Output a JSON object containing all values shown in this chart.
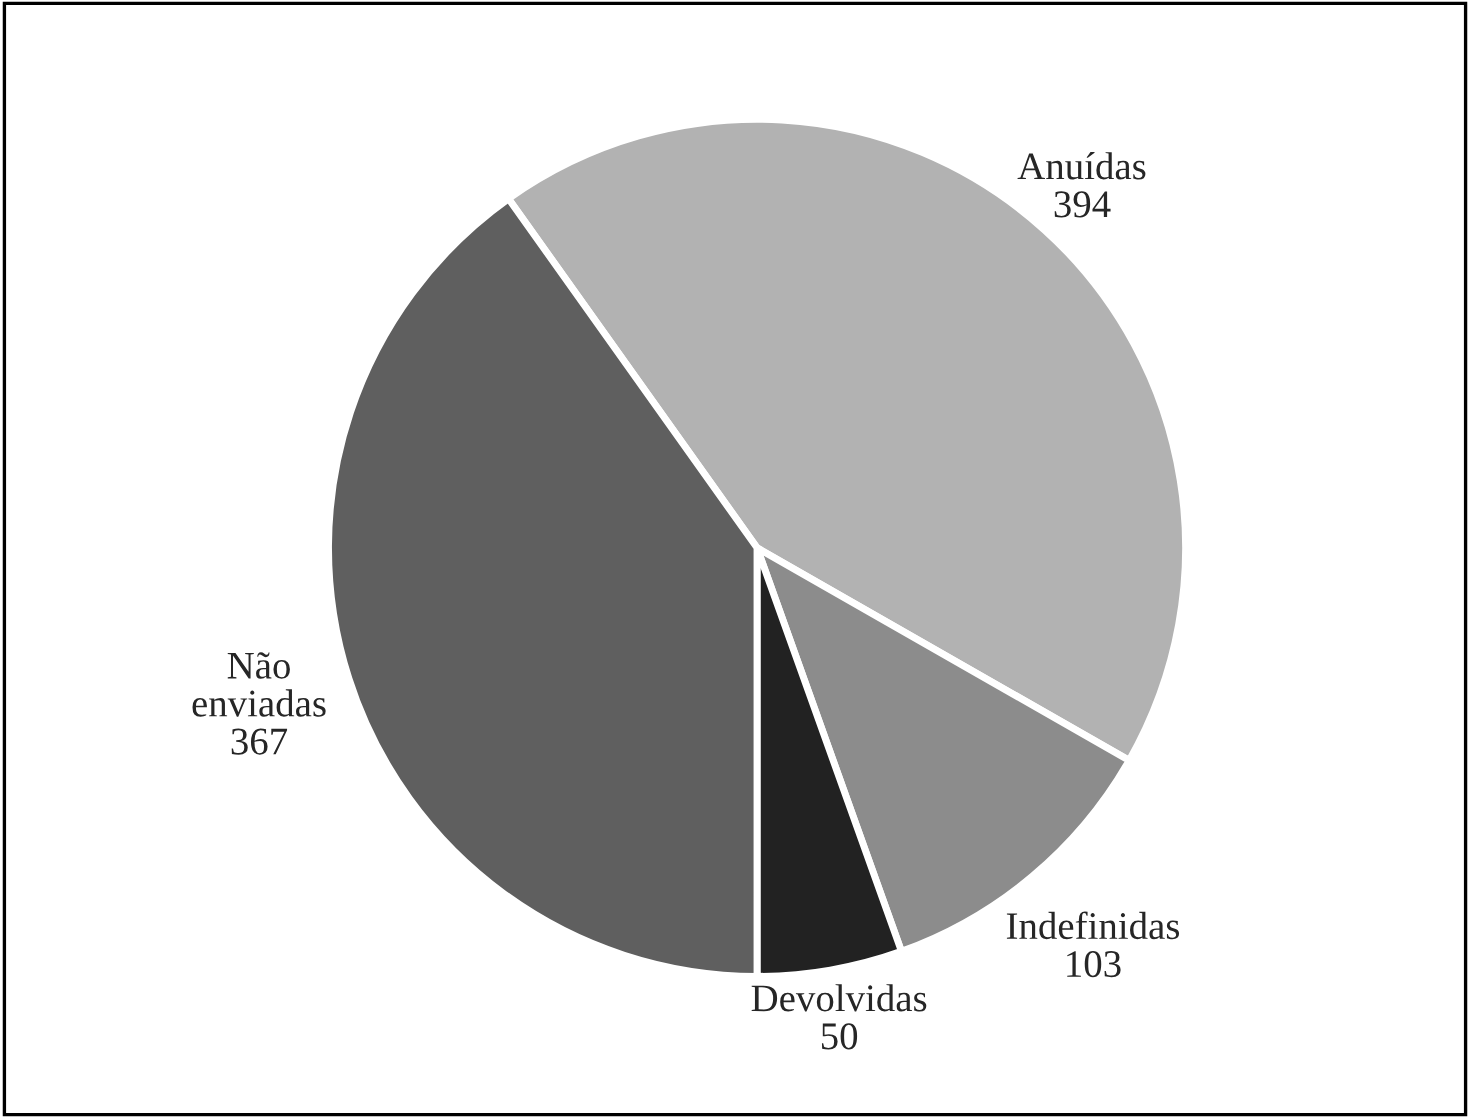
{
  "chart_data": {
    "type": "pie",
    "categories": [
      "Anuídas",
      "Indefinidas",
      "Devolvidas",
      "Não enviadas"
    ],
    "values": [
      394,
      103,
      50,
      367
    ],
    "colors": [
      "#b2b2b2",
      "#8c8c8c",
      "#222222",
      "#5f5f5f"
    ],
    "data_labels": true
  }
}
